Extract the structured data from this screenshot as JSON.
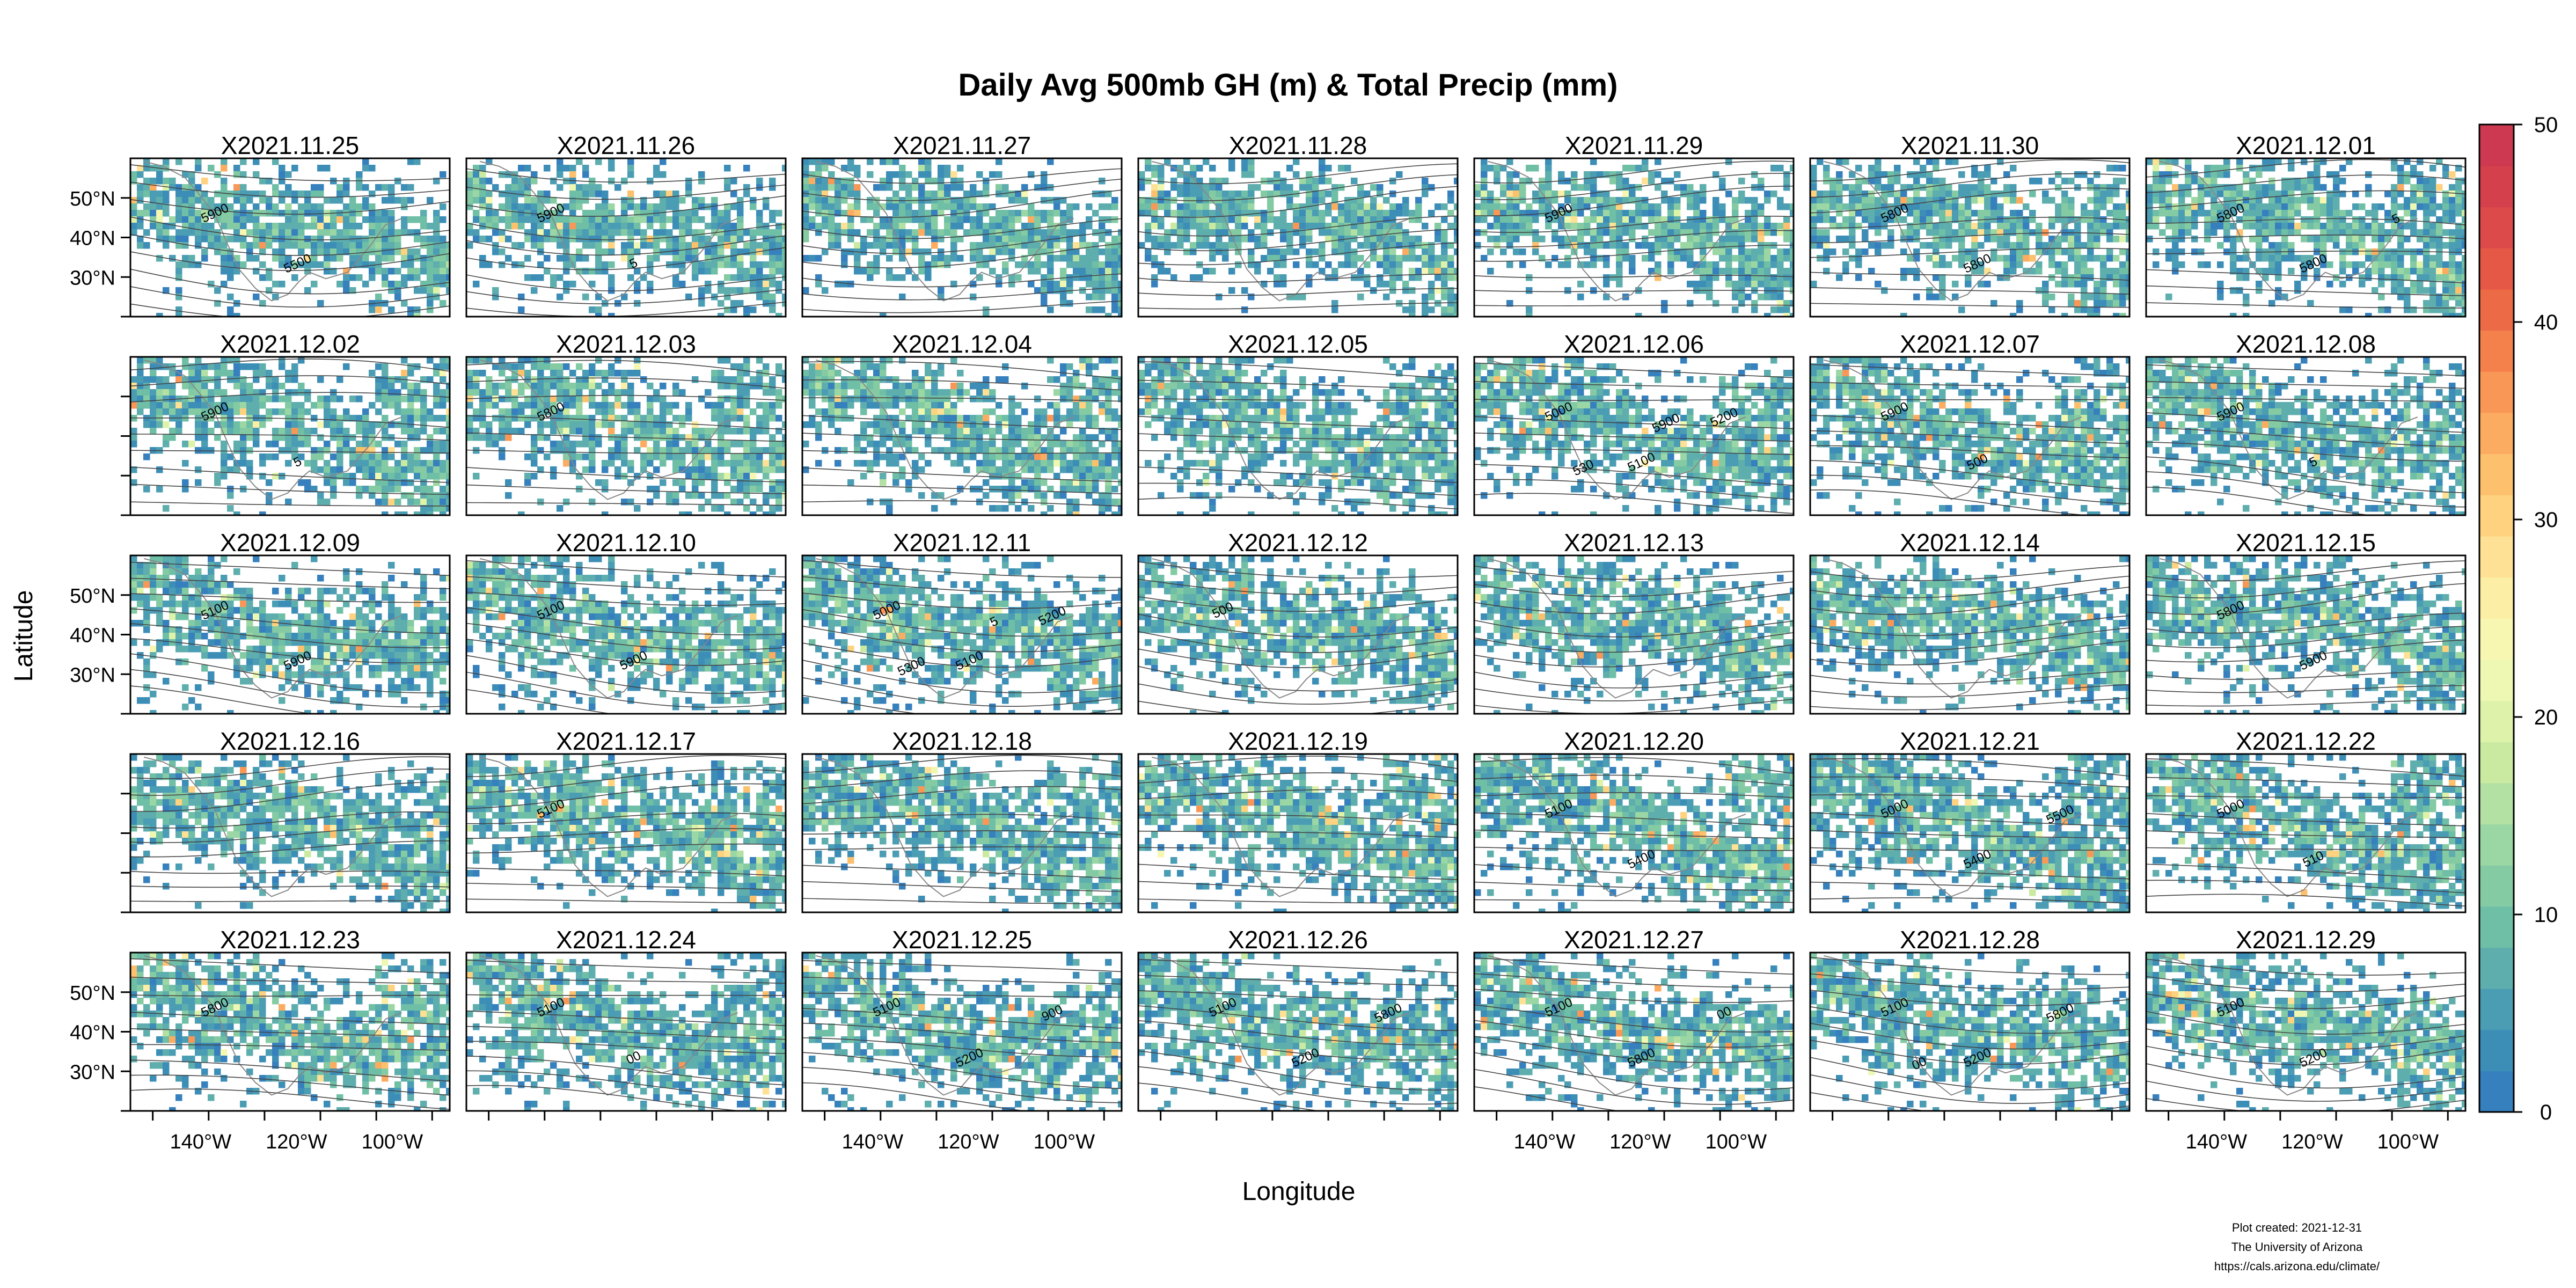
{
  "chart_data": {
    "type": "heatmap",
    "title": "Daily Avg 500mb GH (m) & Total Precip (mm)",
    "xlabel": "Longitude",
    "ylabel": "Latitude",
    "layout": {
      "rows": 5,
      "cols": 7
    },
    "x_ticks": [
      "140°W",
      "120°W",
      "100°W"
    ],
    "y_ticks": [
      "50°N",
      "40°N",
      "30°N"
    ],
    "panels": [
      {
        "date": "X2021.11.25",
        "contour_labels": [
          "5900",
          "5500"
        ]
      },
      {
        "date": "X2021.11.26",
        "contour_labels": [
          "5900",
          "5"
        ]
      },
      {
        "date": "X2021.11.27",
        "contour_labels": []
      },
      {
        "date": "X2021.11.28",
        "contour_labels": []
      },
      {
        "date": "X2021.11.29",
        "contour_labels": [
          "5900"
        ]
      },
      {
        "date": "X2021.11.30",
        "contour_labels": [
          "5800",
          "5800"
        ]
      },
      {
        "date": "X2021.12.01",
        "contour_labels": [
          "5800",
          "5800",
          "5"
        ]
      },
      {
        "date": "X2021.12.02",
        "contour_labels": [
          "5900",
          "5"
        ]
      },
      {
        "date": "X2021.12.03",
        "contour_labels": [
          "5800"
        ]
      },
      {
        "date": "X2021.12.04",
        "contour_labels": []
      },
      {
        "date": "X2021.12.05",
        "contour_labels": []
      },
      {
        "date": "X2021.12.06",
        "contour_labels": [
          "5000",
          "5100",
          "5200",
          "530",
          "5900"
        ]
      },
      {
        "date": "X2021.12.07",
        "contour_labels": [
          "5900",
          "500"
        ]
      },
      {
        "date": "X2021.12.08",
        "contour_labels": [
          "5900",
          "5"
        ]
      },
      {
        "date": "X2021.12.09",
        "contour_labels": [
          "5100",
          "5900"
        ]
      },
      {
        "date": "X2021.12.10",
        "contour_labels": [
          "5100",
          "5900"
        ]
      },
      {
        "date": "X2021.12.11",
        "contour_labels": [
          "5000",
          "5100",
          "5200",
          "5300",
          "5"
        ]
      },
      {
        "date": "X2021.12.12",
        "contour_labels": [
          "500"
        ]
      },
      {
        "date": "X2021.12.13",
        "contour_labels": []
      },
      {
        "date": "X2021.12.14",
        "contour_labels": []
      },
      {
        "date": "X2021.12.15",
        "contour_labels": [
          "5800",
          "5900"
        ]
      },
      {
        "date": "X2021.12.16",
        "contour_labels": []
      },
      {
        "date": "X2021.12.17",
        "contour_labels": [
          "5100"
        ]
      },
      {
        "date": "X2021.12.18",
        "contour_labels": []
      },
      {
        "date": "X2021.12.19",
        "contour_labels": []
      },
      {
        "date": "X2021.12.20",
        "contour_labels": [
          "5100",
          "5400"
        ]
      },
      {
        "date": "X2021.12.21",
        "contour_labels": [
          "5000",
          "5400",
          "5500"
        ]
      },
      {
        "date": "X2021.12.22",
        "contour_labels": [
          "5000",
          "510"
        ]
      },
      {
        "date": "X2021.12.23",
        "contour_labels": [
          "5800"
        ]
      },
      {
        "date": "X2021.12.24",
        "contour_labels": [
          "5100",
          "00"
        ]
      },
      {
        "date": "X2021.12.25",
        "contour_labels": [
          "5100",
          "5200",
          "900"
        ]
      },
      {
        "date": "X2021.12.26",
        "contour_labels": [
          "5100",
          "5200",
          "5800"
        ]
      },
      {
        "date": "X2021.12.27",
        "contour_labels": [
          "5100",
          "5800",
          "00"
        ]
      },
      {
        "date": "X2021.12.28",
        "contour_labels": [
          "5100",
          "5200",
          "5800",
          "00"
        ]
      },
      {
        "date": "X2021.12.29",
        "contour_labels": [
          "5100",
          "5200"
        ]
      }
    ],
    "colorbar": {
      "min": 0,
      "max": 50,
      "step": 2.5,
      "tick_labels": [
        "0",
        "10",
        "20",
        "30",
        "40",
        "50"
      ],
      "colors": [
        "#3680bd",
        "#3c8eb7",
        "#4b9db4",
        "#5eaeae",
        "#6fbfa6",
        "#84cba4",
        "#9bd7a4",
        "#b3e0a3",
        "#caeaa2",
        "#def3a9",
        "#eef8b3",
        "#f8f7b2",
        "#fdeea5",
        "#fee194",
        "#fed27f",
        "#fdc06d",
        "#fcac61",
        "#f99756",
        "#f4814c",
        "#ec6b46",
        "#e55846",
        "#dc4a49",
        "#d4404c",
        "#cc3950"
      ]
    }
  },
  "footer": {
    "line1": "Plot created: 2021-12-31",
    "line2": "The University of Arizona",
    "line3": "https://cals.arizona.edu/climate/"
  }
}
